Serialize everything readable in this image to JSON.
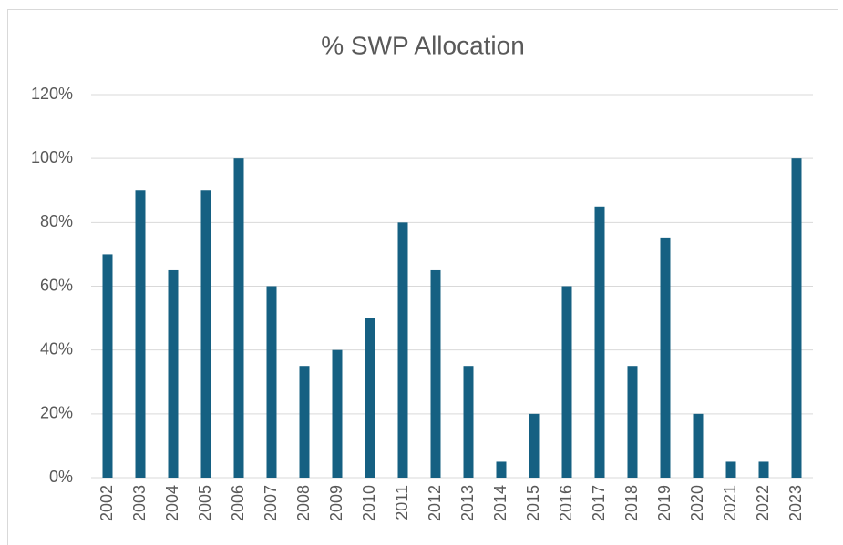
{
  "chart_data": {
    "type": "bar",
    "title": "% SWP Allocation",
    "categories": [
      "2002",
      "2003",
      "2004",
      "2005",
      "2006",
      "2007",
      "2008",
      "2009",
      "2010",
      "2011",
      "2012",
      "2013",
      "2014",
      "2015",
      "2016",
      "2017",
      "2018",
      "2019",
      "2020",
      "2021",
      "2022",
      "2023"
    ],
    "values": [
      70,
      90,
      65,
      90,
      100,
      60,
      35,
      40,
      50,
      80,
      65,
      35,
      5,
      20,
      60,
      85,
      35,
      75,
      20,
      5,
      5,
      100
    ],
    "color": "#156082",
    "ylim": [
      0,
      120
    ],
    "yticks": [
      {
        "value": 0,
        "label": "0%"
      },
      {
        "value": 20,
        "label": "20%"
      },
      {
        "value": 40,
        "label": "40%"
      },
      {
        "value": 60,
        "label": "60%"
      },
      {
        "value": 80,
        "label": "80%"
      },
      {
        "value": 100,
        "label": "100%"
      },
      {
        "value": 120,
        "label": "120%"
      }
    ],
    "grid": true
  }
}
